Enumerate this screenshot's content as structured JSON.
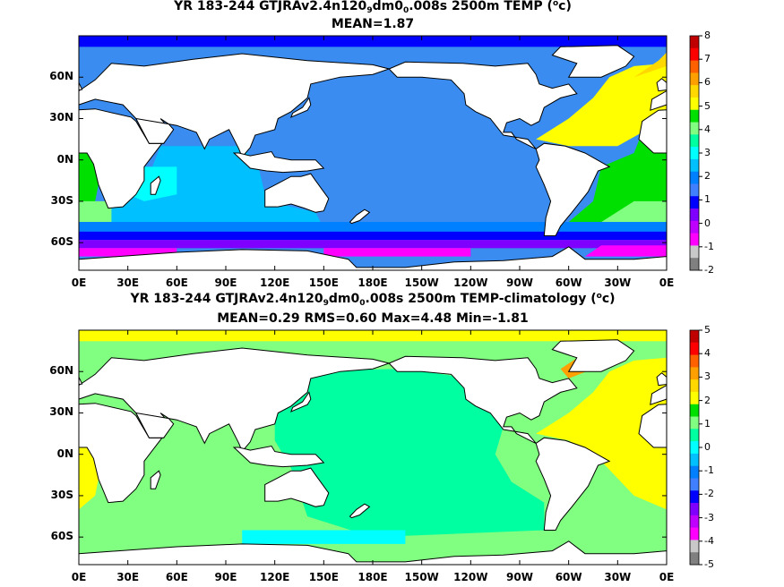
{
  "chart_data": [
    {
      "type": "heatmap",
      "title_prefix": "YR 183-244 GTJRAv2.4n120",
      "title_sub1": "9",
      "title_mid": "dm0",
      "title_sub2": "0",
      "title_suffix": ".008s 2500m TEMP (",
      "title_sup": "o",
      "title_end": "c)",
      "subtitle": "MEAN=1.87",
      "x_ticks": [
        "0E",
        "30E",
        "60E",
        "90E",
        "120E",
        "150E",
        "180E",
        "150W",
        "120W",
        "90W",
        "60W",
        "30W",
        "0E"
      ],
      "y_ticks": [
        "60N",
        "30N",
        "0N",
        "30S",
        "60S"
      ],
      "colorbar_labels": [
        "8",
        "7",
        "6",
        "5",
        "4",
        "3",
        "2",
        "1",
        "0",
        "-1",
        "-2"
      ],
      "colorbar_colors": [
        "#c00000",
        "#ff0000",
        "#ff6000",
        "#ffa000",
        "#ffd800",
        "#ffff00",
        "#00e000",
        "#80ff80",
        "#00ffa0",
        "#00ffff",
        "#00c0ff",
        "#0080ff",
        "#4080ff",
        "#0000ff",
        "#8000ff",
        "#c000ff",
        "#ff00ff",
        "#c8c8c8",
        "#808080"
      ],
      "xlim": [
        0,
        360
      ],
      "ylim": [
        -80,
        90
      ],
      "vlim": [
        -2,
        8
      ]
    },
    {
      "type": "heatmap",
      "title_prefix": "YR 183-244 GTJRAv2.4n120",
      "title_sub1": "9",
      "title_mid": "dm0",
      "title_sub2": "0",
      "title_suffix": ".008s 2500m TEMP-climatology (",
      "title_sup": "o",
      "title_end": "c)",
      "subtitle": "MEAN=0.29   RMS=0.60   Max=4.48   Min=-1.81",
      "x_ticks": [
        "0E",
        "30E",
        "60E",
        "90E",
        "120E",
        "150E",
        "180E",
        "150W",
        "120W",
        "90W",
        "60W",
        "30W",
        "0E"
      ],
      "y_ticks": [
        "60N",
        "30N",
        "0N",
        "30S",
        "60S"
      ],
      "colorbar_labels": [
        "5",
        "4",
        "3",
        "2",
        "1",
        "0",
        "-1",
        "-2",
        "-3",
        "-4",
        "-5"
      ],
      "colorbar_colors": [
        "#c00000",
        "#ff0000",
        "#ff6000",
        "#ffa000",
        "#ffd800",
        "#ffff00",
        "#00e000",
        "#80ff80",
        "#00ffa0",
        "#00ffff",
        "#00c0ff",
        "#0080ff",
        "#4080ff",
        "#0000ff",
        "#8000ff",
        "#c000ff",
        "#ff00ff",
        "#c8c8c8",
        "#808080"
      ],
      "xlim": [
        0,
        360
      ],
      "ylim": [
        -80,
        90
      ],
      "vlim": [
        -5,
        5
      ]
    }
  ],
  "colors": {
    "land": "#ffffff",
    "coast": "#000000",
    "p1_indopac": "#3a8cf0",
    "p1_indian": "#00c0ff",
    "p1_indian_w": "#00ffff",
    "p1_atl_s": "#00e000",
    "p1_atl_s_band": "#80ff80",
    "p1_atl_n": "#ffff00",
    "p1_nordic": "#ffd800",
    "p1_so_band1": "#0080ff",
    "p1_so_band2": "#0000ff",
    "p1_so_band3": "#8000ff",
    "p1_so_band4": "#ff00ff",
    "p2_pac": "#00ffa0",
    "p2_indian": "#80ff80",
    "p2_atl_n": "#ffff00",
    "p2_labrador": "#ffa000",
    "p2_so_cyan": "#00ffff",
    "p2_arctic": "#ffff00"
  }
}
